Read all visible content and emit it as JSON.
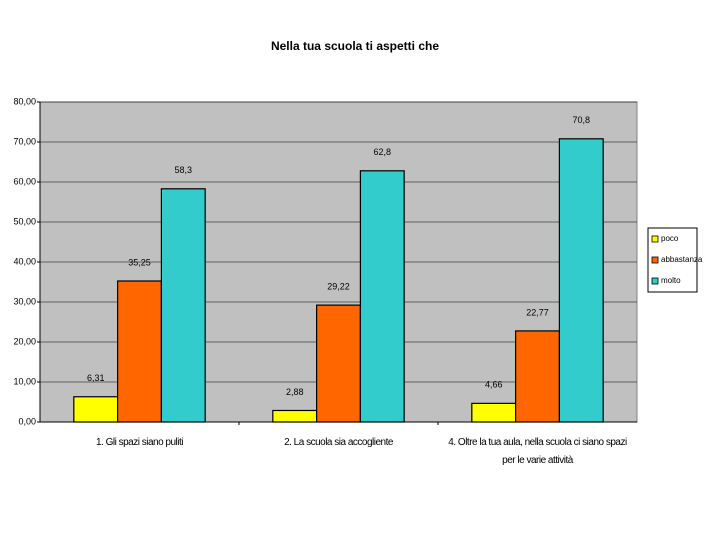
{
  "chart_data": {
    "type": "bar",
    "title": "Nella tua scuola ti aspetti che",
    "categories": [
      "1.   Gli spazi siano puliti",
      "2.   La scuola sia accogliente",
      "4.   Oltre la tua aula, nella scuola ci siano spazi per le varie attività"
    ],
    "series": [
      {
        "name": "poco",
        "color": "#ffff00",
        "values": [
          6.31,
          2.88,
          4.66
        ],
        "value_labels": [
          "6,31",
          "2,88",
          "4,66"
        ]
      },
      {
        "name": "abbastanza",
        "color": "#ff6600",
        "values": [
          35.25,
          29.22,
          22.77
        ],
        "value_labels": [
          "35,25",
          "29,22",
          "22,77"
        ]
      },
      {
        "name": "molto",
        "color": "#33cccc",
        "values": [
          58.3,
          62.8,
          70.8
        ],
        "value_labels": [
          "58,3",
          "62,8",
          "70,8"
        ]
      }
    ],
    "ylim": [
      0,
      80
    ],
    "yticks": [
      {
        "value": 0,
        "label": "0,00"
      },
      {
        "value": 10,
        "label": "10,00"
      },
      {
        "value": 20,
        "label": "20,00"
      },
      {
        "value": 30,
        "label": "30,00"
      },
      {
        "value": 40,
        "label": "40,00"
      },
      {
        "value": 50,
        "label": "50,00"
      },
      {
        "value": 60,
        "label": "60,00"
      },
      {
        "value": 70,
        "label": "70,00"
      },
      {
        "value": 80,
        "label": "80,00"
      }
    ],
    "grid": true,
    "legend": "right"
  }
}
